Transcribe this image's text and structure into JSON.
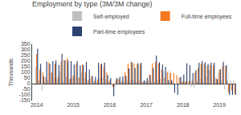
{
  "chart_data": {
    "type": "bar",
    "title": "Employment by type (3M/3M change)",
    "ylabel": "Thousands",
    "categories": [
      "2014",
      null,
      null,
      null,
      null,
      null,
      null,
      null,
      null,
      null,
      null,
      null,
      "2015",
      null,
      null,
      null,
      null,
      null,
      null,
      null,
      null,
      null,
      null,
      null,
      "2016",
      null,
      null,
      null,
      null,
      null,
      null,
      null,
      null,
      null,
      null,
      null,
      "2017",
      null,
      null,
      null,
      null,
      null,
      null,
      null,
      null,
      null,
      null,
      null,
      "2018",
      null,
      null,
      null,
      null,
      null,
      null,
      null,
      null,
      null,
      null,
      null,
      "2019",
      null,
      null,
      null,
      null,
      null
    ],
    "series": [
      {
        "name": "Self-employed",
        "color": "#c0c0c0",
        "values": [
          150,
          30,
          -60,
          25,
          30,
          100,
          55,
          30,
          110,
          20,
          65,
          40,
          50,
          60,
          60,
          100,
          50,
          30,
          45,
          20,
          10,
          50,
          55,
          40,
          15,
          -20,
          -30,
          45,
          15,
          20,
          30,
          25,
          35,
          20,
          30,
          20,
          25,
          30,
          20,
          20,
          35,
          45,
          110,
          95,
          110,
          15,
          -15,
          55,
          20,
          20,
          -15,
          -30,
          -35,
          20,
          45,
          20,
          60,
          120,
          -15,
          50,
          100,
          30,
          -50,
          30,
          30,
          30
        ]
      },
      {
        "name": "Full-time employees",
        "color": "#f47920",
        "values": [
          265,
          125,
          100,
          60,
          190,
          100,
          175,
          60,
          195,
          210,
          225,
          45,
          75,
          175,
          50,
          170,
          100,
          30,
          65,
          25,
          35,
          170,
          150,
          100,
          30,
          -30,
          30,
          40,
          25,
          100,
          175,
          195,
          180,
          175,
          170,
          15,
          20,
          80,
          180,
          195,
          180,
          125,
          50,
          105,
          95,
          95,
          75,
          50,
          20,
          20,
          25,
          25,
          100,
          140,
          175,
          175,
          160,
          165,
          165,
          45,
          120,
          155,
          155,
          -80,
          -60,
          -90
        ]
      },
      {
        "name": "Part-time employees",
        "color": "#2e4272",
        "values": [
          310,
          175,
          65,
          195,
          175,
          200,
          205,
          165,
          265,
          205,
          205,
          200,
          170,
          200,
          160,
          165,
          195,
          125,
          70,
          60,
          185,
          175,
          185,
          75,
          50,
          -110,
          50,
          60,
          65,
          70,
          135,
          190,
          140,
          180,
          185,
          30,
          50,
          75,
          140,
          250,
          190,
          170,
          150,
          30,
          30,
          -80,
          -100,
          60,
          80,
          180,
          165,
          95,
          120,
          185,
          200,
          190,
          175,
          185,
          185,
          40,
          130,
          195,
          165,
          -100,
          -100,
          -100
        ]
      }
    ],
    "ylim": [
      -150,
      350
    ],
    "yticks": [
      -150,
      -100,
      -50,
      0,
      50,
      100,
      150,
      200,
      250,
      300,
      350
    ],
    "grid": false,
    "legend": "upper right"
  }
}
